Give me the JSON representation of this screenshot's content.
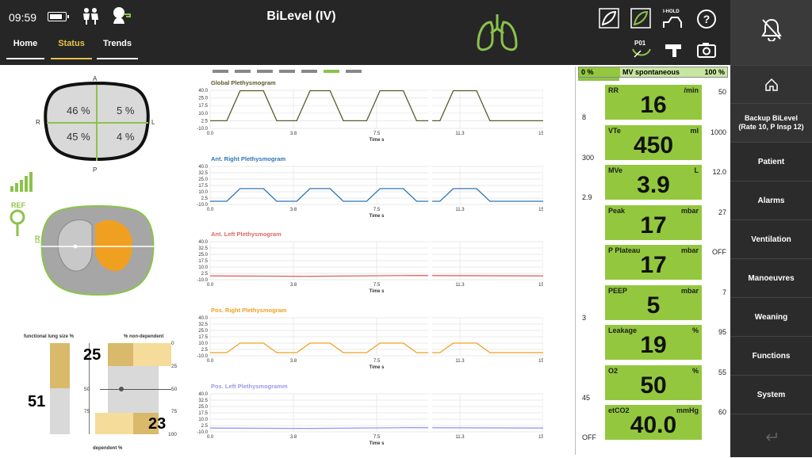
{
  "topbar": {
    "time": "09:59",
    "mode_title": "BiLevel (IV)",
    "tabs": [
      {
        "label": "Home",
        "active": false
      },
      {
        "label": "Status",
        "active": true
      },
      {
        "label": "Trends",
        "active": false
      }
    ],
    "p01_label": "P01",
    "ihold_label": "I-HOLD",
    "accent_color": "#e8c14a"
  },
  "sidebar": {
    "backup_label": "Backup BiLevel (Rate 10, P Insp 12)",
    "items": [
      "Patient",
      "Alarms",
      "Ventilation",
      "Manoeuvres",
      "Weaning",
      "Functions",
      "System"
    ]
  },
  "eit": {
    "quadrant_labels": {
      "top": "A",
      "bottom": "P",
      "left": "R",
      "right": "L"
    },
    "quadrants": {
      "top_left": "46 %",
      "top_right": "5 %",
      "bottom_left": "45 %",
      "bottom_right": "4 %"
    },
    "ref_label": "REF",
    "image_r_label": "R",
    "functional_lung_size_label": "functional lung size %",
    "non_dependent_label": "% non-dependent",
    "dependent_label": "dependent %",
    "functional_lung_size": "51",
    "non_dependent_value": "25",
    "dependent_value": "23",
    "scale_ticks": [
      "0",
      "25",
      "50",
      "75",
      "100"
    ]
  },
  "plethysmograms": {
    "x_ticks": [
      "0.0",
      "3.8",
      "7.5",
      "11.3",
      "15.0"
    ],
    "x_label": "Time s",
    "charts": [
      {
        "title": "Global Plethysmogram",
        "color": "#5a5a2a",
        "y_ticks": [
          "40.0",
          "25.0",
          "17.5",
          "10.0",
          "2.5",
          "-10.0"
        ]
      },
      {
        "title": "Ant. Right Plethysmogram",
        "color": "#2e75b6",
        "y_ticks": [
          "40.0",
          "32.5",
          "25.0",
          "17.5",
          "10.0",
          "2.5",
          "-10.0"
        ]
      },
      {
        "title": "Ant. Left Plethysmogram",
        "color": "#e06666",
        "y_ticks": [
          "40.0",
          "32.5",
          "25.0",
          "17.5",
          "10.0",
          "2.5",
          "-10.0"
        ]
      },
      {
        "title": "Pos. Right Plethysmogram",
        "color": "#f0a020",
        "y_ticks": [
          "40.0",
          "32.5",
          "25.0",
          "17.5",
          "10.0",
          "2.5",
          "-10.0"
        ]
      },
      {
        "title": "Pos. Left Plethysmogramm",
        "color": "#9999ee",
        "y_ticks": [
          "40.0",
          "32.5",
          "25.0",
          "17.5",
          "10.0",
          "2.5",
          "-10.0"
        ]
      }
    ]
  },
  "mv_spontaneous": {
    "label": "MV spontaneous",
    "left": "0 %",
    "right": "100 %",
    "fill_fraction": 0.28
  },
  "parameters": [
    {
      "name": "RR",
      "unit": "/min",
      "value": "16",
      "low": "8",
      "high": "50"
    },
    {
      "name": "VTe",
      "unit": "ml",
      "value": "450",
      "low": "300",
      "high": "1000"
    },
    {
      "name": "MVe",
      "unit": "L",
      "value": "3.9",
      "low": "2.9",
      "high": "12.0"
    },
    {
      "name": "Peak",
      "unit": "mbar",
      "value": "17",
      "low": "",
      "high": "27"
    },
    {
      "name": "P Plateau",
      "unit": "mbar",
      "value": "17",
      "low": "",
      "high": "OFF"
    },
    {
      "name": "PEEP",
      "unit": "mbar",
      "value": "5",
      "low": "3",
      "high": "7"
    },
    {
      "name": "Leakage",
      "unit": "%",
      "value": "19",
      "low": "",
      "high": "95"
    },
    {
      "name": "O2",
      "unit": "%",
      "value": "50",
      "low": "45",
      "high": "55"
    },
    {
      "name": "etCO2",
      "unit": "mmHg",
      "value": "40.0",
      "low": "OFF",
      "high": "60"
    }
  ],
  "colors": {
    "param_bg": "#93c83e",
    "topbar": "#262626",
    "sidebar": "#2b2b2b",
    "lung_green": "#8bc34a"
  }
}
